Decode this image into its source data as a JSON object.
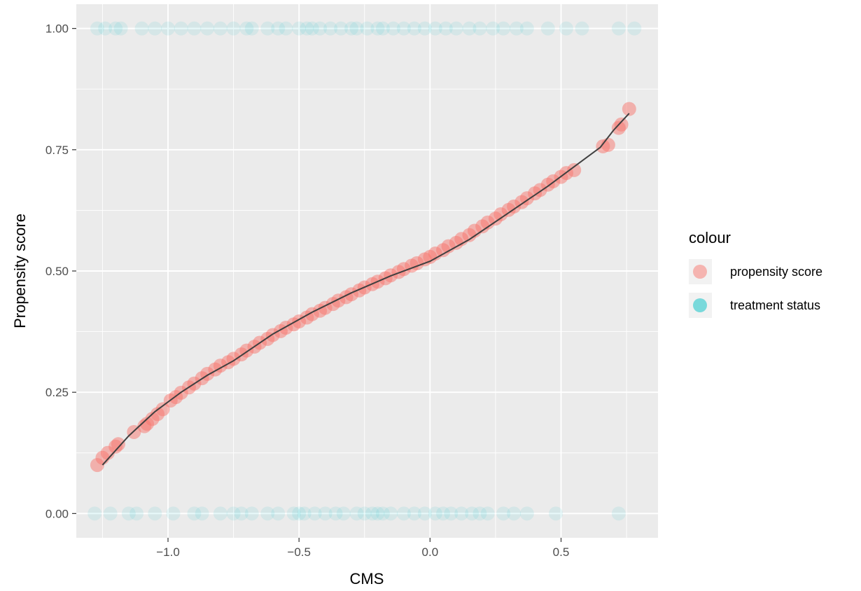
{
  "chart_data": {
    "type": "scatter",
    "xlabel": "CMS",
    "ylabel": "Propensity score",
    "xlim": [
      -1.35,
      0.87
    ],
    "ylim": [
      -0.05,
      1.05
    ],
    "x_ticks": [
      -1.0,
      -0.5,
      0.0,
      0.5
    ],
    "x_tick_labels": [
      "−1.0",
      "−0.5",
      "0.0",
      "0.5"
    ],
    "y_ticks": [
      0.0,
      0.25,
      0.5,
      0.75,
      1.0
    ],
    "y_tick_labels": [
      "0.00",
      "0.25",
      "0.50",
      "0.75",
      "1.00"
    ],
    "grid": true,
    "legend": {
      "title": "colour",
      "placement": "right",
      "entries": [
        {
          "label": "propensity score",
          "color": "#F8766D"
        },
        {
          "label": "treatment status",
          "color": "#00BFC4"
        }
      ]
    },
    "series": [
      {
        "name": "propensity score",
        "color": "#F8766D",
        "x": [
          -1.27,
          -1.25,
          -1.23,
          -1.2,
          -1.19,
          -1.13,
          -1.09,
          -1.08,
          -1.06,
          -1.04,
          -1.02,
          -0.99,
          -0.97,
          -0.95,
          -0.92,
          -0.9,
          -0.87,
          -0.85,
          -0.82,
          -0.8,
          -0.77,
          -0.75,
          -0.72,
          -0.7,
          -0.67,
          -0.65,
          -0.62,
          -0.6,
          -0.57,
          -0.55,
          -0.52,
          -0.5,
          -0.47,
          -0.45,
          -0.42,
          -0.4,
          -0.37,
          -0.35,
          -0.32,
          -0.3,
          -0.27,
          -0.25,
          -0.22,
          -0.2,
          -0.17,
          -0.15,
          -0.12,
          -0.1,
          -0.07,
          -0.05,
          -0.02,
          0.0,
          0.02,
          0.05,
          0.07,
          0.1,
          0.12,
          0.15,
          0.17,
          0.2,
          0.22,
          0.25,
          0.27,
          0.3,
          0.32,
          0.35,
          0.37,
          0.4,
          0.42,
          0.45,
          0.47,
          0.5,
          0.52,
          0.55,
          0.66,
          0.68,
          0.72,
          0.73,
          0.76
        ],
        "y": [
          0.1,
          0.115,
          0.125,
          0.138,
          0.143,
          0.168,
          0.18,
          0.185,
          0.195,
          0.205,
          0.215,
          0.233,
          0.24,
          0.249,
          0.26,
          0.268,
          0.279,
          0.288,
          0.297,
          0.305,
          0.312,
          0.319,
          0.328,
          0.336,
          0.344,
          0.352,
          0.36,
          0.368,
          0.376,
          0.383,
          0.39,
          0.396,
          0.404,
          0.411,
          0.418,
          0.424,
          0.432,
          0.439,
          0.446,
          0.452,
          0.46,
          0.466,
          0.473,
          0.478,
          0.485,
          0.491,
          0.498,
          0.504,
          0.511,
          0.516,
          0.524,
          0.529,
          0.536,
          0.543,
          0.551,
          0.558,
          0.566,
          0.574,
          0.583,
          0.592,
          0.6,
          0.608,
          0.617,
          0.626,
          0.633,
          0.642,
          0.65,
          0.66,
          0.667,
          0.678,
          0.685,
          0.694,
          0.702,
          0.708,
          0.757,
          0.76,
          0.795,
          0.802,
          0.834
        ]
      },
      {
        "name": "treatment status",
        "color": "#00BFC4",
        "x": [
          -1.27,
          -1.24,
          -1.2,
          -1.18,
          -1.1,
          -1.05,
          -1.0,
          -0.95,
          -0.9,
          -0.85,
          -0.8,
          -0.75,
          -0.7,
          -0.68,
          -0.62,
          -0.58,
          -0.55,
          -0.5,
          -0.47,
          -0.45,
          -0.42,
          -0.38,
          -0.34,
          -0.3,
          -0.28,
          -0.24,
          -0.2,
          -0.18,
          -0.14,
          -0.1,
          -0.06,
          -0.02,
          0.02,
          0.06,
          0.1,
          0.15,
          0.19,
          0.24,
          0.28,
          0.33,
          0.37,
          0.45,
          0.52,
          0.58,
          0.72,
          0.78,
          -1.28,
          -1.22,
          -1.15,
          -1.12,
          -1.05,
          -0.98,
          -0.9,
          -0.87,
          -0.8,
          -0.75,
          -0.72,
          -0.68,
          -0.62,
          -0.58,
          -0.52,
          -0.5,
          -0.48,
          -0.44,
          -0.4,
          -0.36,
          -0.33,
          -0.28,
          -0.25,
          -0.22,
          -0.2,
          -0.18,
          -0.15,
          -0.1,
          -0.06,
          -0.02,
          0.02,
          0.05,
          0.08,
          0.12,
          0.16,
          0.19,
          0.22,
          0.28,
          0.32,
          0.37,
          0.48,
          0.72
        ],
        "y": [
          1,
          1,
          1,
          1,
          1,
          1,
          1,
          1,
          1,
          1,
          1,
          1,
          1,
          1,
          1,
          1,
          1,
          1,
          1,
          1,
          1,
          1,
          1,
          1,
          1,
          1,
          1,
          1,
          1,
          1,
          1,
          1,
          1,
          1,
          1,
          1,
          1,
          1,
          1,
          1,
          1,
          1,
          1,
          1,
          1,
          1,
          0,
          0,
          0,
          0,
          0,
          0,
          0,
          0,
          0,
          0,
          0,
          0,
          0,
          0,
          0,
          0,
          0,
          0,
          0,
          0,
          0,
          0,
          0,
          0,
          0,
          0,
          0,
          0,
          0,
          0,
          0,
          0,
          0,
          0,
          0,
          0,
          0,
          0,
          0,
          0,
          0,
          0
        ]
      },
      {
        "name": "",
        "type": "line",
        "color": "#404040",
        "x": [
          -1.25,
          -1.15,
          -1.05,
          -0.95,
          -0.85,
          -0.75,
          -0.6,
          -0.45,
          -0.3,
          -0.15,
          0.0,
          0.15,
          0.3,
          0.45,
          0.55,
          0.65,
          0.7,
          0.76
        ],
        "y": [
          0.1,
          0.16,
          0.21,
          0.25,
          0.285,
          0.315,
          0.37,
          0.415,
          0.455,
          0.49,
          0.52,
          0.565,
          0.62,
          0.675,
          0.715,
          0.755,
          0.79,
          0.825
        ]
      }
    ]
  }
}
